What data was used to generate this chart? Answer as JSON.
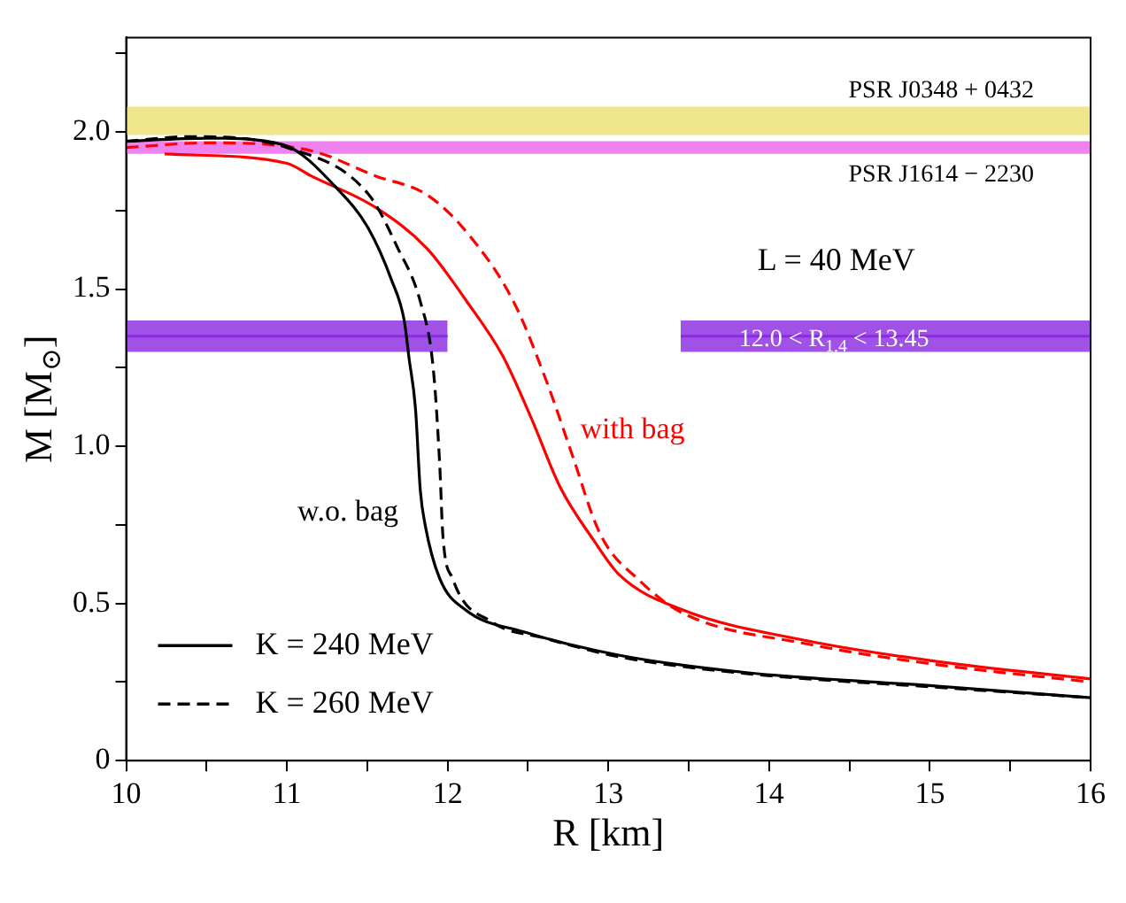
{
  "chart_data": {
    "type": "line",
    "xlabel": "R [km]",
    "ylabel": "M [M$_{⊙}$]",
    "xlim": [
      10,
      16
    ],
    "ylim": [
      0,
      2.3
    ],
    "xticks": [
      10,
      {
        "value": 10.5,
        "label": null
      },
      11,
      {
        "value": 11.5,
        "label": null
      },
      12,
      {
        "value": 12.5,
        "label": null
      },
      13,
      {
        "value": 13.5,
        "label": null
      },
      14,
      {
        "value": 14.5,
        "label": null
      },
      15,
      {
        "value": 15.5,
        "label": null
      },
      16
    ],
    "yticks": [
      0,
      {
        "value": 0.25,
        "label": null
      },
      0.5,
      {
        "value": 0.75,
        "label": null
      },
      {
        "value": 1,
        "label": "1.0"
      },
      {
        "value": 1.25,
        "label": null
      },
      1.5,
      {
        "value": 1.75,
        "label": null
      },
      {
        "value": 2,
        "label": "2.0"
      },
      {
        "value": 2.25,
        "label": null
      }
    ],
    "grid": false,
    "legend": "bottom left",
    "marker": "none",
    "series": [
      {
        "name": "K = 240 MeV",
        "color": "#000000",
        "line_style": "solid",
        "x": [
          10,
          10.5,
          10.97,
          11.33,
          11.51,
          11.65,
          11.73,
          11.76,
          11.8,
          11.83,
          11.86,
          11.95,
          12.11,
          12.47,
          13.07,
          13.86,
          15.05,
          16
        ],
        "values": [
          1.97,
          1.98,
          1.96,
          1.81,
          1.69,
          1.53,
          1.4,
          1.28,
          1.12,
          0.86,
          0.75,
          0.58,
          0.48,
          0.41,
          0.335,
          0.28,
          0.237,
          0.2
        ]
      },
      {
        "name": "K = 260 MeV",
        "color": "#000000",
        "line_style": "dashed",
        "x": [
          10,
          10.4,
          11,
          11.51,
          11.69,
          11.83,
          11.91,
          11.95,
          11.97,
          12.03,
          12.28,
          12.6,
          13.07,
          13.86,
          15.05,
          16
        ],
        "values": [
          1.97,
          1.985,
          1.95,
          1.8,
          1.63,
          1.46,
          1.25,
          0.95,
          0.72,
          0.58,
          0.44,
          0.39,
          0.33,
          0.277,
          0.233,
          0.2
        ]
      },
      {
        "color": "#ff0000",
        "line_style": "solid",
        "x": [
          10.24,
          11,
          11.15,
          11.55,
          11.87,
          12.12,
          12.34,
          12.52,
          12.7,
          12.91,
          13.07,
          13.46,
          14.25,
          15.05,
          16
        ],
        "values": [
          1.93,
          1.9,
          1.86,
          1.76,
          1.63,
          1.46,
          1.29,
          1.09,
          0.87,
          0.7,
          0.59,
          0.48,
          0.38,
          0.315,
          0.26
        ]
      },
      {
        "color": "#ff0000",
        "line_style": "dashed",
        "x": [
          10,
          10.5,
          11.15,
          11.55,
          11.87,
          12.12,
          12.41,
          12.62,
          12.77,
          12.95,
          13.2,
          13.46,
          14.25,
          15.05,
          16
        ],
        "values": [
          1.95,
          1.965,
          1.94,
          1.86,
          1.8,
          1.68,
          1.46,
          1.2,
          0.98,
          0.72,
          0.57,
          0.47,
          0.37,
          0.305,
          0.25
        ]
      },
      {
        "color": "#8a2be2",
        "x": [
          10,
          12
        ],
        "values": [
          1.35,
          1.35
        ],
        "lower": [
          1.3,
          1.3
        ],
        "upper": [
          1.4,
          1.4
        ]
      },
      {
        "color": "#8a2be2",
        "x": [
          13.45,
          16
        ],
        "values": [
          1.35,
          1.35
        ],
        "lower": [
          1.3,
          1.3
        ],
        "upper": [
          1.4,
          1.4
        ]
      }
    ],
    "bands": [
      {
        "axis": "y",
        "from": 1.99,
        "to": 2.08,
        "label": "PSR J0348 + 0432",
        "color": "#f0e68c"
      },
      {
        "axis": "y",
        "from": 1.93,
        "to": 1.97,
        "label": "PSR J1614 − 2230",
        "color": "#ee82ee"
      }
    ],
    "annotations": [
      "L = 40 MeV",
      "with bag",
      "w.o. bag",
      "12.0 < R$_{1.4}$ < 13.45"
    ]
  }
}
